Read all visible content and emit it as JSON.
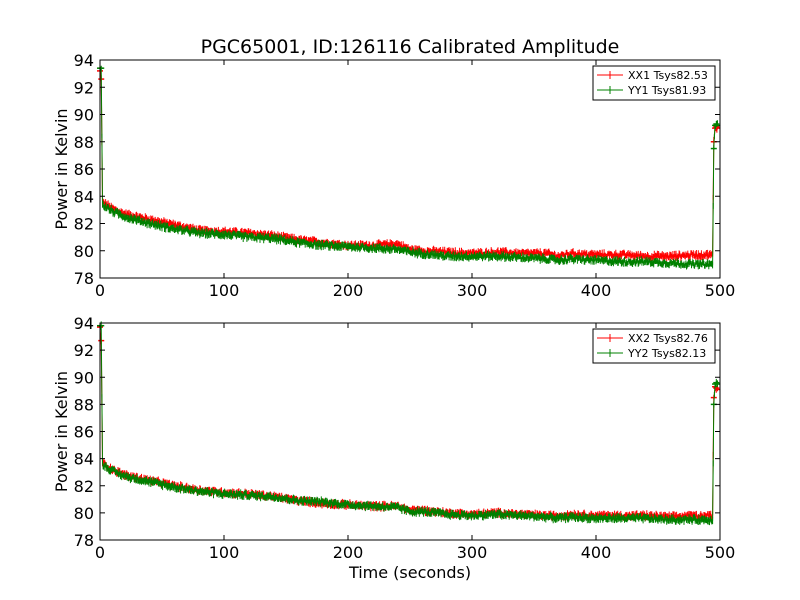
{
  "title": "PGC65001, ID:126116 Calibrated Amplitude",
  "xlabel": "Time (seconds)",
  "chart_data": [
    {
      "type": "line",
      "ylabel": "Power in Kelvin",
      "xlim": [
        0,
        500
      ],
      "ylim": [
        78,
        94
      ],
      "xticks": [
        "0",
        "100",
        "200",
        "300",
        "400",
        "500"
      ],
      "yticks": [
        "78",
        "80",
        "82",
        "84",
        "86",
        "88",
        "90",
        "92",
        "94"
      ],
      "legend_position": "top-right",
      "series": [
        {
          "name": "XX1 Tsys82.53",
          "color": "#ff0000",
          "x": [
            0,
            1,
            2,
            3,
            5,
            10,
            20,
            40,
            60,
            80,
            100,
            120,
            140,
            160,
            180,
            200,
            220,
            240,
            250,
            260,
            280,
            300,
            320,
            340,
            360,
            370,
            380,
            400,
            420,
            440,
            460,
            480,
            494,
            495,
            496,
            497,
            498
          ],
          "y": [
            93.2,
            92.6,
            83.6,
            83.5,
            83.4,
            83.1,
            82.7,
            82.3,
            81.9,
            81.5,
            81.4,
            81.3,
            81.1,
            80.8,
            80.6,
            80.4,
            80.4,
            80.5,
            80.1,
            80.0,
            79.9,
            79.8,
            79.9,
            79.8,
            79.8,
            79.6,
            79.8,
            79.7,
            79.7,
            79.6,
            79.6,
            79.7,
            79.7,
            88.0,
            89.0,
            89.1,
            89.0
          ]
        },
        {
          "name": "YY1 Tsys81.93",
          "color": "#008000",
          "x": [
            0,
            1,
            2,
            3,
            5,
            10,
            20,
            40,
            60,
            80,
            100,
            120,
            140,
            160,
            180,
            200,
            220,
            240,
            250,
            260,
            280,
            300,
            320,
            340,
            360,
            370,
            380,
            400,
            420,
            440,
            460,
            480,
            494,
            495,
            496,
            497,
            498
          ],
          "y": [
            93.4,
            93.4,
            83.4,
            83.3,
            83.2,
            82.9,
            82.5,
            82.0,
            81.6,
            81.3,
            81.2,
            81.0,
            80.9,
            80.6,
            80.4,
            80.3,
            80.2,
            80.1,
            79.9,
            79.8,
            79.6,
            79.6,
            79.6,
            79.5,
            79.4,
            79.3,
            79.4,
            79.3,
            79.2,
            79.2,
            79.1,
            79.0,
            79.0,
            87.5,
            89.2,
            89.3,
            89.2
          ]
        }
      ]
    },
    {
      "type": "line",
      "ylabel": "Power in Kelvin",
      "xlim": [
        0,
        500
      ],
      "ylim": [
        78,
        94
      ],
      "xticks": [
        "0",
        "100",
        "200",
        "300",
        "400",
        "500"
      ],
      "yticks": [
        "78",
        "80",
        "82",
        "84",
        "86",
        "88",
        "90",
        "92",
        "94"
      ],
      "legend_position": "top-right",
      "series": [
        {
          "name": "XX2 Tsys82.76",
          "color": "#ff0000",
          "x": [
            0,
            1,
            2,
            3,
            5,
            10,
            20,
            40,
            60,
            80,
            100,
            120,
            140,
            160,
            180,
            200,
            220,
            240,
            250,
            260,
            280,
            300,
            320,
            340,
            360,
            370,
            380,
            400,
            420,
            440,
            460,
            480,
            494,
            495,
            496,
            497,
            498
          ],
          "y": [
            93.7,
            92.7,
            83.7,
            83.6,
            83.5,
            83.2,
            82.8,
            82.4,
            82.0,
            81.7,
            81.5,
            81.4,
            81.2,
            80.9,
            80.7,
            80.6,
            80.5,
            80.5,
            80.2,
            80.2,
            80.0,
            79.9,
            80.0,
            79.9,
            79.8,
            79.8,
            79.9,
            79.8,
            79.8,
            79.8,
            79.7,
            79.8,
            79.8,
            88.5,
            89.3,
            89.2,
            89.1
          ]
        },
        {
          "name": "YY2 Tsys82.13",
          "color": "#008000",
          "x": [
            0,
            1,
            2,
            3,
            5,
            10,
            20,
            40,
            60,
            80,
            100,
            120,
            140,
            160,
            180,
            200,
            220,
            240,
            250,
            260,
            280,
            300,
            320,
            340,
            360,
            370,
            380,
            400,
            420,
            440,
            460,
            480,
            494,
            495,
            496,
            497,
            498
          ],
          "y": [
            93.8,
            93.8,
            83.6,
            83.5,
            83.4,
            83.1,
            82.7,
            82.3,
            81.9,
            81.6,
            81.4,
            81.3,
            81.2,
            80.9,
            80.8,
            80.6,
            80.5,
            80.4,
            80.1,
            80.1,
            79.9,
            79.8,
            79.9,
            79.8,
            79.7,
            79.6,
            79.7,
            79.6,
            79.6,
            79.6,
            79.5,
            79.5,
            79.5,
            88.0,
            89.5,
            89.6,
            89.5
          ]
        }
      ]
    }
  ]
}
